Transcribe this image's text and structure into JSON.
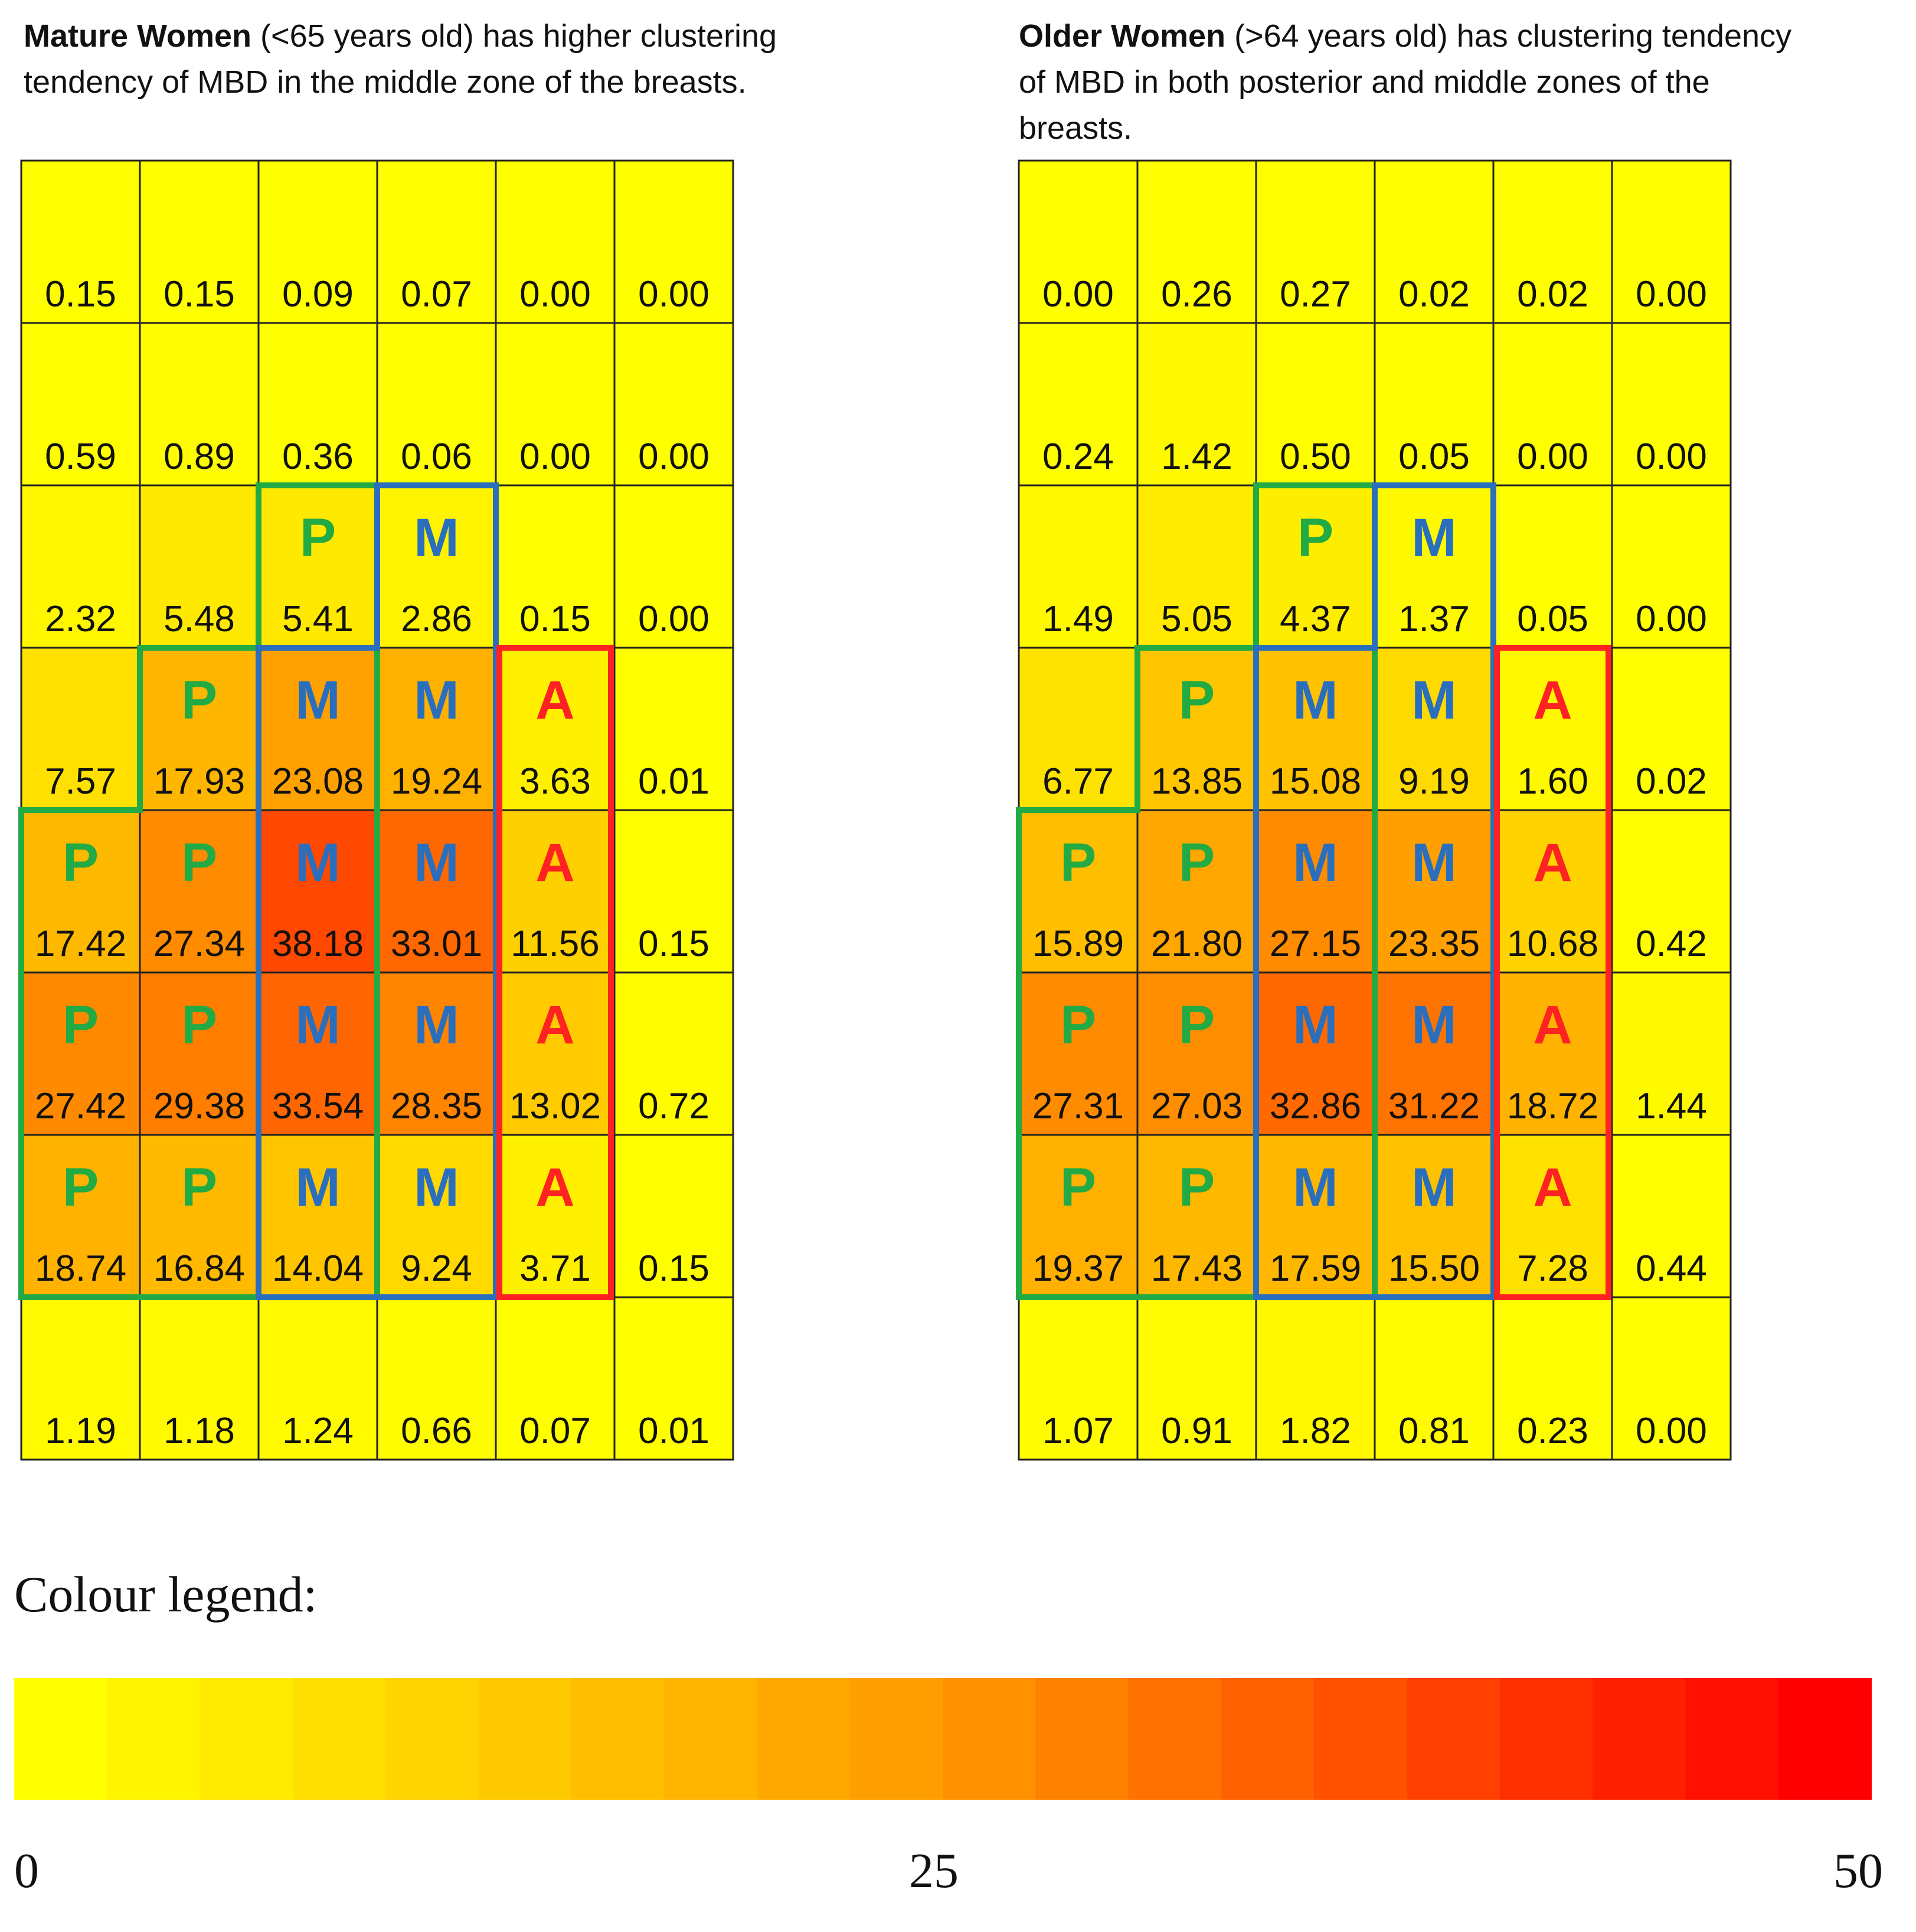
{
  "captions": {
    "left_bold": "Mature Women",
    "left_rest": " (<65 years old) has higher clustering tendency of MBD in the middle zone of the breasts.",
    "right_bold": "Older Women",
    "right_rest": " (>64 years old) has clustering tendency of MBD in both posterior and middle zones of the breasts."
  },
  "legend": {
    "title": "Colour legend:",
    "ticks": [
      "0",
      "25",
      "50"
    ],
    "min": 0,
    "max": 50,
    "steps": 20,
    "color_low": "#ffff00",
    "color_mid": "#ff9900",
    "color_high": "#ff0000"
  },
  "zone_colors": {
    "P": "#22aa44",
    "M": "#2a6fbd",
    "A": "#ff2222"
  },
  "chart_data": [
    {
      "type": "heatmap",
      "title": "Mature Women (<65 years old) has higher clustering tendency of MBD in the middle zone of the breasts.",
      "rows": 8,
      "cols": 6,
      "values": [
        [
          "0.15",
          "0.15",
          "0.09",
          "0.07",
          "0.00",
          "0.00"
        ],
        [
          "0.59",
          "0.89",
          "0.36",
          "0.06",
          "0.00",
          "0.00"
        ],
        [
          "2.32",
          "5.48",
          "5.41",
          "2.86",
          "0.15",
          "0.00"
        ],
        [
          "7.57",
          "17.93",
          "23.08",
          "19.24",
          "3.63",
          "0.01"
        ],
        [
          "17.42",
          "27.34",
          "38.18",
          "33.01",
          "11.56",
          "0.15"
        ],
        [
          "27.42",
          "29.38",
          "33.54",
          "28.35",
          "13.02",
          "0.72"
        ],
        [
          "18.74",
          "16.84",
          "14.04",
          "9.24",
          "3.71",
          "0.15"
        ],
        [
          "1.19",
          "1.18",
          "1.24",
          "0.66",
          "0.07",
          "0.01"
        ]
      ],
      "zone_letters": [
        [
          "",
          "",
          "",
          "",
          "",
          ""
        ],
        [
          "",
          "",
          "",
          "",
          "",
          ""
        ],
        [
          "",
          "",
          "P",
          "M",
          "",
          ""
        ],
        [
          "",
          "P",
          "M",
          "M",
          "A",
          ""
        ],
        [
          "P",
          "P",
          "M",
          "M",
          "A",
          ""
        ],
        [
          "P",
          "P",
          "M",
          "M",
          "A",
          ""
        ],
        [
          "P",
          "P",
          "M",
          "M",
          "A",
          ""
        ],
        [
          "",
          "",
          "",
          "",
          "",
          ""
        ]
      ]
    },
    {
      "type": "heatmap",
      "title": "Older Women (>64 years old) has clustering tendency of MBD in both posterior and middle zones of the breasts.",
      "rows": 8,
      "cols": 6,
      "values": [
        [
          "0.00",
          "0.26",
          "0.27",
          "0.02",
          "0.02",
          "0.00"
        ],
        [
          "0.24",
          "1.42",
          "0.50",
          "0.05",
          "0.00",
          "0.00"
        ],
        [
          "1.49",
          "5.05",
          "4.37",
          "1.37",
          "0.05",
          "0.00"
        ],
        [
          "6.77",
          "13.85",
          "15.08",
          "9.19",
          "1.60",
          "0.02"
        ],
        [
          "15.89",
          "21.80",
          "27.15",
          "23.35",
          "10.68",
          "0.42"
        ],
        [
          "27.31",
          "27.03",
          "32.86",
          "31.22",
          "18.72",
          "1.44"
        ],
        [
          "19.37",
          "17.43",
          "17.59",
          "15.50",
          "7.28",
          "0.44"
        ],
        [
          "1.07",
          "0.91",
          "1.82",
          "0.81",
          "0.23",
          "0.00"
        ]
      ],
      "zone_letters": [
        [
          "",
          "",
          "",
          "",
          "",
          ""
        ],
        [
          "",
          "",
          "",
          "",
          "",
          ""
        ],
        [
          "",
          "",
          "P",
          "M",
          "",
          ""
        ],
        [
          "",
          "P",
          "M",
          "M",
          "A",
          ""
        ],
        [
          "P",
          "P",
          "M",
          "M",
          "A",
          ""
        ],
        [
          "P",
          "P",
          "M",
          "M",
          "A",
          ""
        ],
        [
          "P",
          "P",
          "M",
          "M",
          "A",
          ""
        ],
        [
          "",
          "",
          "",
          "",
          "",
          ""
        ]
      ]
    }
  ]
}
